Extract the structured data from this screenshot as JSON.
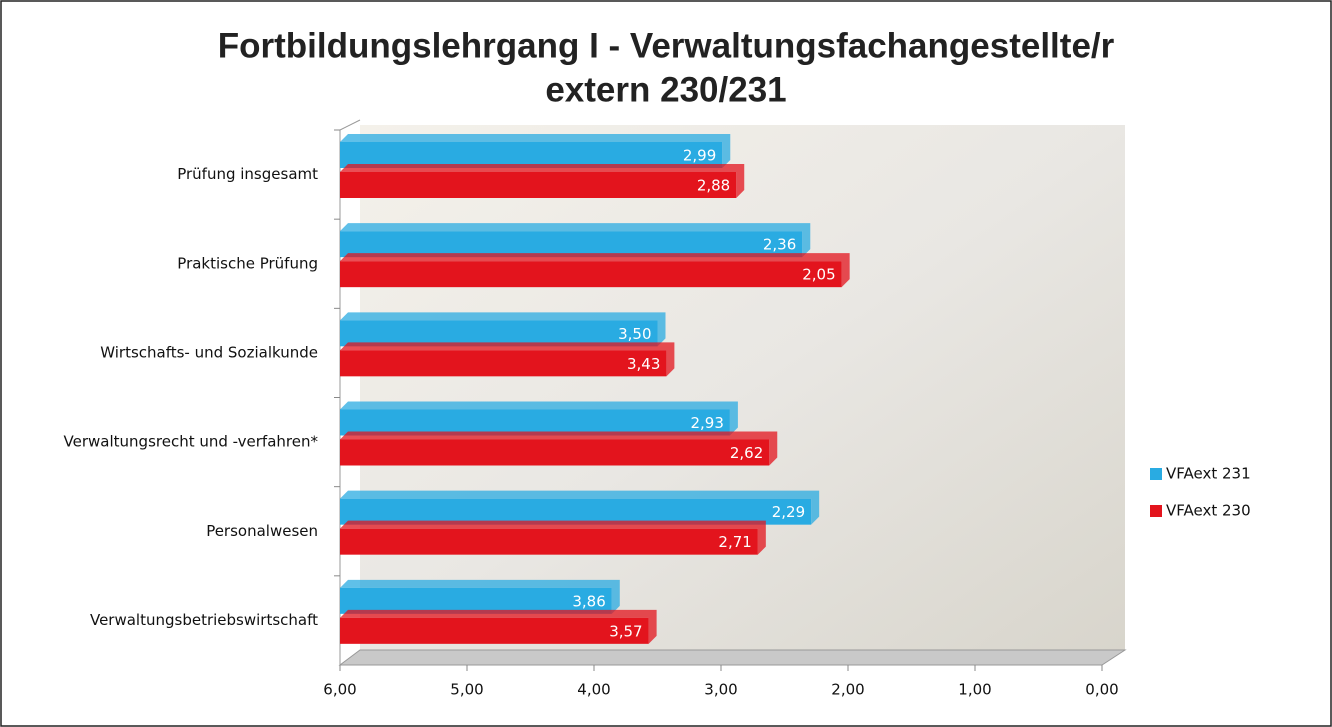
{
  "chart_data": {
    "type": "bar",
    "orientation": "horizontal",
    "reversed_x": true,
    "title": [
      "Fortbildungslehrgang I - Verwaltungsfachangestellte/r",
      "extern 230/231"
    ],
    "categories": [
      "Prüfung insgesamt",
      "Praktische Prüfung",
      "Wirtschafts- und Sozialkunde",
      "Verwaltungsrecht und -verfahren*",
      "Personalwesen",
      "Verwaltungsbetriebswirtschaft"
    ],
    "series": [
      {
        "name": "VFAext 231",
        "color": "#29abe2",
        "values": [
          2.99,
          2.36,
          3.5,
          2.93,
          2.29,
          3.86
        ],
        "value_labels": [
          "2,99",
          "2,36",
          "3,50",
          "2,93",
          "2,29",
          "3,86"
        ]
      },
      {
        "name": "VFAext 230",
        "color": "#e3141d",
        "values": [
          2.88,
          2.05,
          3.43,
          2.62,
          2.71,
          3.57
        ],
        "value_labels": [
          "2,88",
          "2,05",
          "3,43",
          "2,62",
          "2,71",
          "3,57"
        ]
      }
    ],
    "xlim": [
      6,
      0
    ],
    "xticks": [
      {
        "value": 6,
        "label": "6,00"
      },
      {
        "value": 5,
        "label": "5,00"
      },
      {
        "value": 4,
        "label": "4,00"
      },
      {
        "value": 3,
        "label": "3,00"
      },
      {
        "value": 2,
        "label": "2,00"
      },
      {
        "value": 1,
        "label": "1,00"
      },
      {
        "value": 0,
        "label": "0,00"
      }
    ],
    "legend": "right"
  }
}
